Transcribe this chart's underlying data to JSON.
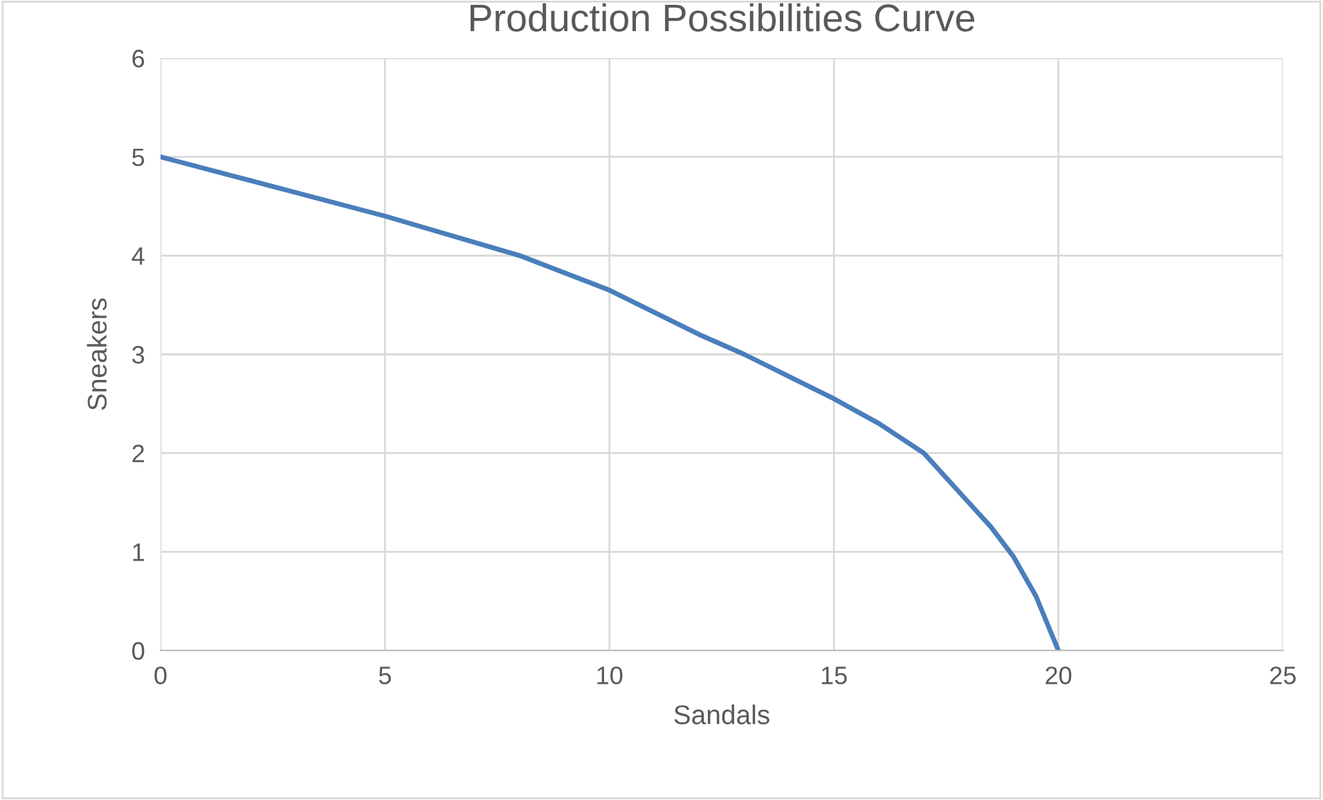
{
  "chart_data": {
    "type": "line",
    "title": "Production Possibilities Curve",
    "xlabel": "Sandals",
    "ylabel": "Sneakers",
    "series": [
      {
        "color": "#4a7ebb",
        "x": [
          0,
          2,
          5,
          8,
          10,
          12,
          13,
          15,
          16,
          17,
          18,
          18.5,
          19,
          19.5,
          20
        ],
        "values": [
          5,
          4.76,
          4.4,
          4.0,
          3.65,
          3.2,
          3.0,
          2.55,
          2.3,
          2.0,
          1.5,
          1.25,
          0.95,
          0.55,
          0
        ]
      }
    ],
    "xlim": [
      0,
      25
    ],
    "xticks": [
      0,
      5,
      10,
      15,
      20,
      25
    ],
    "ylim": [
      0,
      6
    ],
    "yticks": [
      0,
      1,
      2,
      3,
      4,
      5,
      6
    ],
    "grid": true,
    "marker": "none",
    "line_style": "solid",
    "legend": false
  }
}
